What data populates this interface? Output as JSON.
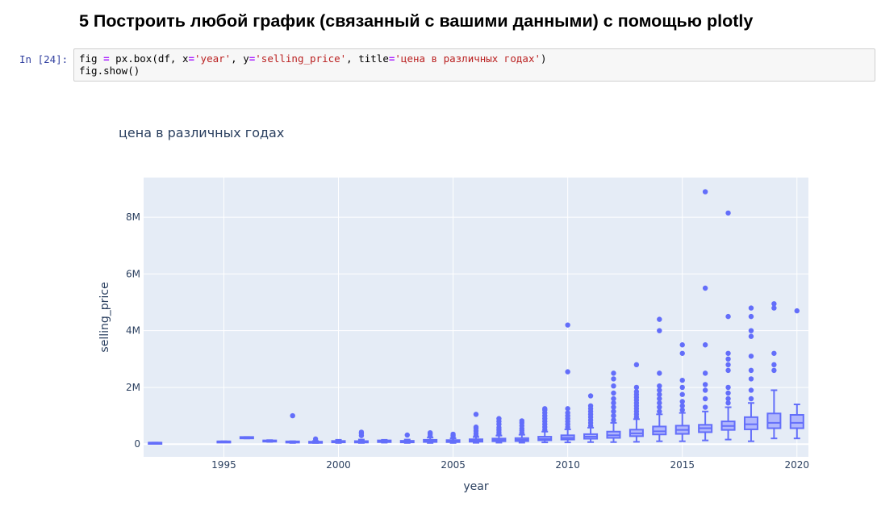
{
  "notebook": {
    "heading": "5 Построить любой график (связанный с вашими данными) с помощью plotly",
    "prompt": "In [24]:",
    "code": {
      "l1_a": "fig ",
      "l1_op1": "=",
      "l1_b": " px.box(df, x",
      "l1_op2": "=",
      "l1_s1": "'year'",
      "l1_c": ", y",
      "l1_op3": "=",
      "l1_s2": "'selling_price'",
      "l1_d": ", title",
      "l1_op4": "=",
      "l1_s3": "'цена в различных годах'",
      "l1_e": ")",
      "l2": "fig.show()"
    }
  },
  "colors": {
    "plot_bg": "#e5ecf6",
    "box_line": "#636efa",
    "box_fill": "#b1b7fc",
    "text": "#2a3f5f"
  },
  "chart_data": {
    "type": "box",
    "title": "цена в различных годах",
    "xlabel": "year",
    "ylabel": "selling_price",
    "xlim": [
      1991.5,
      2020.5
    ],
    "ylim": [
      -450000,
      9400000
    ],
    "x_ticks": [
      1995,
      2000,
      2005,
      2010,
      2015,
      2020
    ],
    "y_ticks": [
      {
        "value": 0,
        "label": "0"
      },
      {
        "value": 2000000,
        "label": "2M"
      },
      {
        "value": 4000000,
        "label": "4M"
      },
      {
        "value": 6000000,
        "label": "6M"
      },
      {
        "value": 8000000,
        "label": "8M"
      }
    ],
    "grid": true,
    "boxes": [
      {
        "year": 1992,
        "min": 50000,
        "q1": 50000,
        "median": 50000,
        "q3": 50000,
        "max": 50000,
        "outliers": []
      },
      {
        "year": 1995,
        "min": 95000,
        "q1": 95000,
        "median": 95000,
        "q3": 95000,
        "max": 95000,
        "outliers": []
      },
      {
        "year": 1996,
        "min": 200000,
        "q1": 200000,
        "median": 225000,
        "q3": 250000,
        "max": 250000,
        "outliers": []
      },
      {
        "year": 1997,
        "min": 80000,
        "q1": 90000,
        "median": 110000,
        "q3": 130000,
        "max": 140000,
        "outliers": []
      },
      {
        "year": 1998,
        "min": 40000,
        "q1": 60000,
        "median": 80000,
        "q3": 95000,
        "max": 100000,
        "outliers": [
          1000000
        ]
      },
      {
        "year": 1999,
        "min": 40000,
        "q1": 50000,
        "median": 65000,
        "q3": 85000,
        "max": 110000,
        "outliers": [
          180000
        ]
      },
      {
        "year": 2000,
        "min": 40000,
        "q1": 60000,
        "median": 80000,
        "q3": 110000,
        "max": 150000,
        "outliers": []
      },
      {
        "year": 2001,
        "min": 40000,
        "q1": 55000,
        "median": 75000,
        "q3": 105000,
        "max": 160000,
        "outliers": [
          300000,
          380000,
          420000
        ]
      },
      {
        "year": 2002,
        "min": 50000,
        "q1": 70000,
        "median": 100000,
        "q3": 130000,
        "max": 150000,
        "outliers": []
      },
      {
        "year": 2003,
        "min": 40000,
        "q1": 60000,
        "median": 85000,
        "q3": 115000,
        "max": 160000,
        "outliers": [
          320000
        ]
      },
      {
        "year": 2004,
        "min": 40000,
        "q1": 75000,
        "median": 110000,
        "q3": 150000,
        "max": 230000,
        "outliers": [
          280000,
          350000,
          400000
        ]
      },
      {
        "year": 2005,
        "min": 40000,
        "q1": 70000,
        "median": 105000,
        "q3": 140000,
        "max": 200000,
        "outliers": [
          250000,
          300000,
          350000
        ]
      },
      {
        "year": 2006,
        "min": 45000,
        "q1": 85000,
        "median": 125000,
        "q3": 170000,
        "max": 250000,
        "outliers": [
          300000,
          380000,
          460000,
          550000,
          600000,
          1050000
        ]
      },
      {
        "year": 2007,
        "min": 50000,
        "q1": 100000,
        "median": 145000,
        "q3": 195000,
        "max": 300000,
        "outliers": [
          350000,
          420000,
          500000,
          580000,
          700000,
          800000,
          900000
        ]
      },
      {
        "year": 2008,
        "min": 50000,
        "q1": 105000,
        "median": 150000,
        "q3": 210000,
        "max": 330000,
        "outliers": [
          400000,
          480000,
          550000,
          650000,
          750000,
          820000
        ]
      },
      {
        "year": 2009,
        "min": 60000,
        "q1": 135000,
        "median": 180000,
        "q3": 260000,
        "max": 440000,
        "outliers": [
          500000,
          600000,
          700000,
          800000,
          900000,
          1000000,
          1100000,
          1200000,
          1250000
        ]
      },
      {
        "year": 2010,
        "min": 60000,
        "q1": 160000,
        "median": 220000,
        "q3": 310000,
        "max": 520000,
        "outliers": [
          600000,
          700000,
          800000,
          900000,
          1000000,
          1100000,
          1250000,
          2550000,
          4200000
        ]
      },
      {
        "year": 2011,
        "min": 70000,
        "q1": 190000,
        "median": 260000,
        "q3": 350000,
        "max": 580000,
        "outliers": [
          650000,
          750000,
          850000,
          950000,
          1050000,
          1150000,
          1250000,
          1350000,
          1700000
        ]
      },
      {
        "year": 2012,
        "min": 70000,
        "q1": 220000,
        "median": 310000,
        "q3": 440000,
        "max": 750000,
        "outliers": [
          850000,
          1000000,
          1150000,
          1300000,
          1450000,
          1600000,
          1800000,
          2050000,
          2300000,
          2500000
        ]
      },
      {
        "year": 2013,
        "min": 80000,
        "q1": 280000,
        "median": 380000,
        "q3": 510000,
        "max": 880000,
        "outliers": [
          950000,
          1050000,
          1150000,
          1250000,
          1350000,
          1450000,
          1550000,
          1650000,
          1750000,
          1850000,
          2000000,
          2800000
        ]
      },
      {
        "year": 2014,
        "min": 100000,
        "q1": 340000,
        "median": 450000,
        "q3": 620000,
        "max": 1050000,
        "outliers": [
          1150000,
          1300000,
          1450000,
          1600000,
          1750000,
          1900000,
          2050000,
          2500000,
          4000000,
          4400000
        ]
      },
      {
        "year": 2015,
        "min": 100000,
        "q1": 360000,
        "median": 500000,
        "q3": 650000,
        "max": 1100000,
        "outliers": [
          1200000,
          1350000,
          1500000,
          1750000,
          2000000,
          2250000,
          3200000,
          3500000
        ]
      },
      {
        "year": 2016,
        "min": 130000,
        "q1": 420000,
        "median": 560000,
        "q3": 680000,
        "max": 1150000,
        "outliers": [
          1300000,
          1600000,
          1900000,
          2100000,
          2500000,
          3500000,
          5500000,
          8900000
        ]
      },
      {
        "year": 2017,
        "min": 160000,
        "q1": 500000,
        "median": 640000,
        "q3": 800000,
        "max": 1300000,
        "outliers": [
          1450000,
          1600000,
          1800000,
          2000000,
          2600000,
          2800000,
          3000000,
          3200000,
          4500000,
          8150000
        ]
      },
      {
        "year": 2018,
        "min": 100000,
        "q1": 520000,
        "median": 700000,
        "q3": 950000,
        "max": 1450000,
        "outliers": [
          1600000,
          1900000,
          2300000,
          2600000,
          3100000,
          3800000,
          4000000,
          4500000,
          4800000
        ]
      },
      {
        "year": 2019,
        "min": 200000,
        "q1": 560000,
        "median": 750000,
        "q3": 1080000,
        "max": 1900000,
        "outliers": [
          2600000,
          2800000,
          3200000,
          4800000,
          4950000
        ]
      },
      {
        "year": 2020,
        "min": 200000,
        "q1": 560000,
        "median": 750000,
        "q3": 1030000,
        "max": 1400000,
        "outliers": [
          4700000
        ]
      }
    ]
  }
}
